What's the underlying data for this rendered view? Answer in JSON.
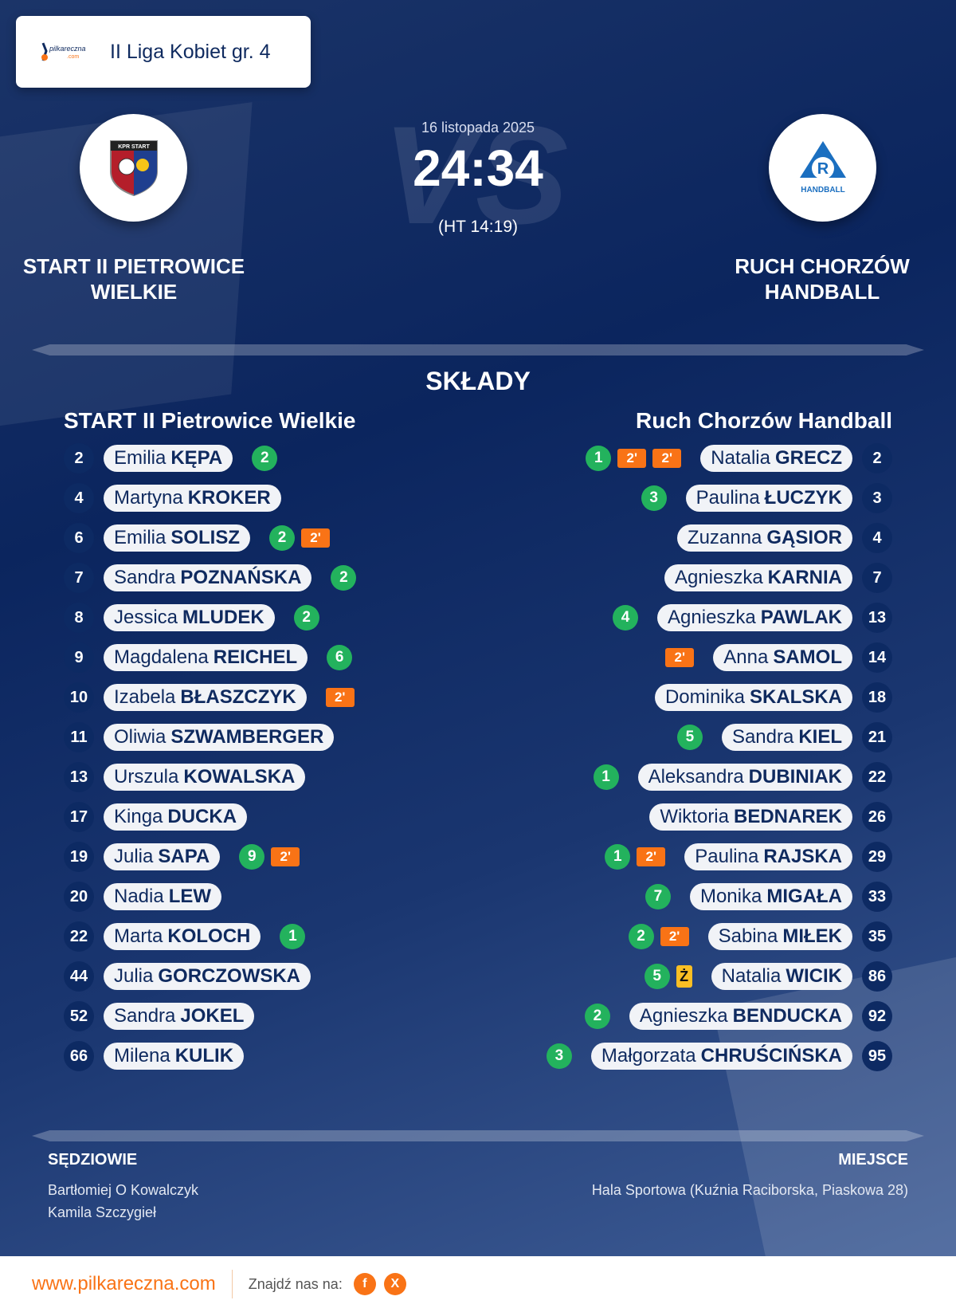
{
  "league": "II Liga Kobiet gr. 4",
  "brand_logo_text": "pilkareczna.com",
  "match": {
    "date": "16 listopada 2025",
    "score": "24:34",
    "halftime": "(HT 14:19)",
    "vs": "VS"
  },
  "home": {
    "name_line1": "START II PIETROWICE",
    "name_line2": "WIELKIE",
    "header": "START II Pietrowice Wielkie",
    "crest_text": "KPR START",
    "players": [
      {
        "no": "2",
        "first": "Emilia",
        "last": "KĘPA",
        "goals": "2",
        "susp": 0
      },
      {
        "no": "4",
        "first": "Martyna",
        "last": "KROKER",
        "goals": "",
        "susp": 0
      },
      {
        "no": "6",
        "first": "Emilia",
        "last": "SOLISZ",
        "goals": "2",
        "susp": 1
      },
      {
        "no": "7",
        "first": "Sandra",
        "last": "POZNAŃSKA",
        "goals": "2",
        "susp": 0
      },
      {
        "no": "8",
        "first": "Jessica",
        "last": "MLUDEK",
        "goals": "2",
        "susp": 0
      },
      {
        "no": "9",
        "first": "Magdalena",
        "last": "REICHEL",
        "goals": "6",
        "susp": 0
      },
      {
        "no": "10",
        "first": "Izabela",
        "last": "BŁASZCZYK",
        "goals": "",
        "susp": 1
      },
      {
        "no": "11",
        "first": "Oliwia",
        "last": "SZWAMBERGER",
        "goals": "",
        "susp": 0
      },
      {
        "no": "13",
        "first": "Urszula",
        "last": "KOWALSKA",
        "goals": "",
        "susp": 0
      },
      {
        "no": "17",
        "first": "Kinga",
        "last": "DUCKA",
        "goals": "",
        "susp": 0
      },
      {
        "no": "19",
        "first": "Julia",
        "last": "SAPA",
        "goals": "9",
        "susp": 1
      },
      {
        "no": "20",
        "first": "Nadia",
        "last": "LEW",
        "goals": "",
        "susp": 0
      },
      {
        "no": "22",
        "first": "Marta",
        "last": "KOLOCH",
        "goals": "1",
        "susp": 0
      },
      {
        "no": "44",
        "first": "Julia",
        "last": "GORCZOWSKA",
        "goals": "",
        "susp": 0
      },
      {
        "no": "52",
        "first": "Sandra",
        "last": "JOKEL",
        "goals": "",
        "susp": 0
      },
      {
        "no": "66",
        "first": "Milena",
        "last": "KULIK",
        "goals": "",
        "susp": 0
      }
    ]
  },
  "away": {
    "name_line1": "RUCH CHORZÓW",
    "name_line2": "HANDBALL",
    "header": "Ruch Chorzów Handball",
    "crest_text": "HANDBALL",
    "players": [
      {
        "no": "2",
        "first": "Natalia",
        "last": "GRECZ",
        "goals": "1",
        "susp": 2
      },
      {
        "no": "3",
        "first": "Paulina",
        "last": "ŁUCZYK",
        "goals": "3",
        "susp": 0
      },
      {
        "no": "4",
        "first": "Zuzanna",
        "last": "GĄSIOR",
        "goals": "",
        "susp": 0
      },
      {
        "no": "7",
        "first": "Agnieszka",
        "last": "KARNIA",
        "goals": "",
        "susp": 0
      },
      {
        "no": "13",
        "first": "Agnieszka",
        "last": "PAWLAK",
        "goals": "4",
        "susp": 0
      },
      {
        "no": "14",
        "first": "Anna",
        "last": "SAMOL",
        "goals": "",
        "susp": 1
      },
      {
        "no": "18",
        "first": "Dominika",
        "last": "SKALSKA",
        "goals": "",
        "susp": 0
      },
      {
        "no": "21",
        "first": "Sandra",
        "last": "KIEL",
        "goals": "5",
        "susp": 0
      },
      {
        "no": "22",
        "first": "Aleksandra",
        "last": "DUBINIAK",
        "goals": "1",
        "susp": 0
      },
      {
        "no": "26",
        "first": "Wiktoria",
        "last": "BEDNAREK",
        "goals": "",
        "susp": 0
      },
      {
        "no": "29",
        "first": "Paulina",
        "last": "RAJSKA",
        "goals": "1",
        "susp": 1
      },
      {
        "no": "33",
        "first": "Monika",
        "last": "MIGAŁA",
        "goals": "7",
        "susp": 0
      },
      {
        "no": "35",
        "first": "Sabina",
        "last": "MIŁEK",
        "goals": "2",
        "susp": 1
      },
      {
        "no": "86",
        "first": "Natalia",
        "last": "WICIK",
        "goals": "5",
        "susp": 0,
        "yellow": "Ż"
      },
      {
        "no": "92",
        "first": "Agnieszka",
        "last": "BENDUCKA",
        "goals": "2",
        "susp": 0
      },
      {
        "no": "95",
        "first": "Małgorzata",
        "last": "CHRUŚCIŃSKA",
        "goals": "3",
        "susp": 0
      }
    ]
  },
  "suspension_label": "2'",
  "lineups_title": "SKŁADY",
  "referees": {
    "label": "SĘDZIOWIE",
    "names": [
      "Bartłomiej O Kowalczyk",
      "Kamila Szczygieł"
    ]
  },
  "venue": {
    "label": "MIEJSCE",
    "value": "Hala Sportowa (Kuźnia Raciborska, Piaskowa 28)"
  },
  "footer": {
    "site": "www.pilkareczna.com",
    "find_us": "Znajdź nas na:",
    "social": [
      {
        "icon": "facebook-icon",
        "glyph": "f"
      },
      {
        "icon": "x-icon",
        "glyph": "X"
      }
    ]
  },
  "colors": {
    "goal": "#23b25d",
    "suspension": "#f97316",
    "yellow_card": "#fbbf24",
    "navy": "#0d2a63"
  }
}
